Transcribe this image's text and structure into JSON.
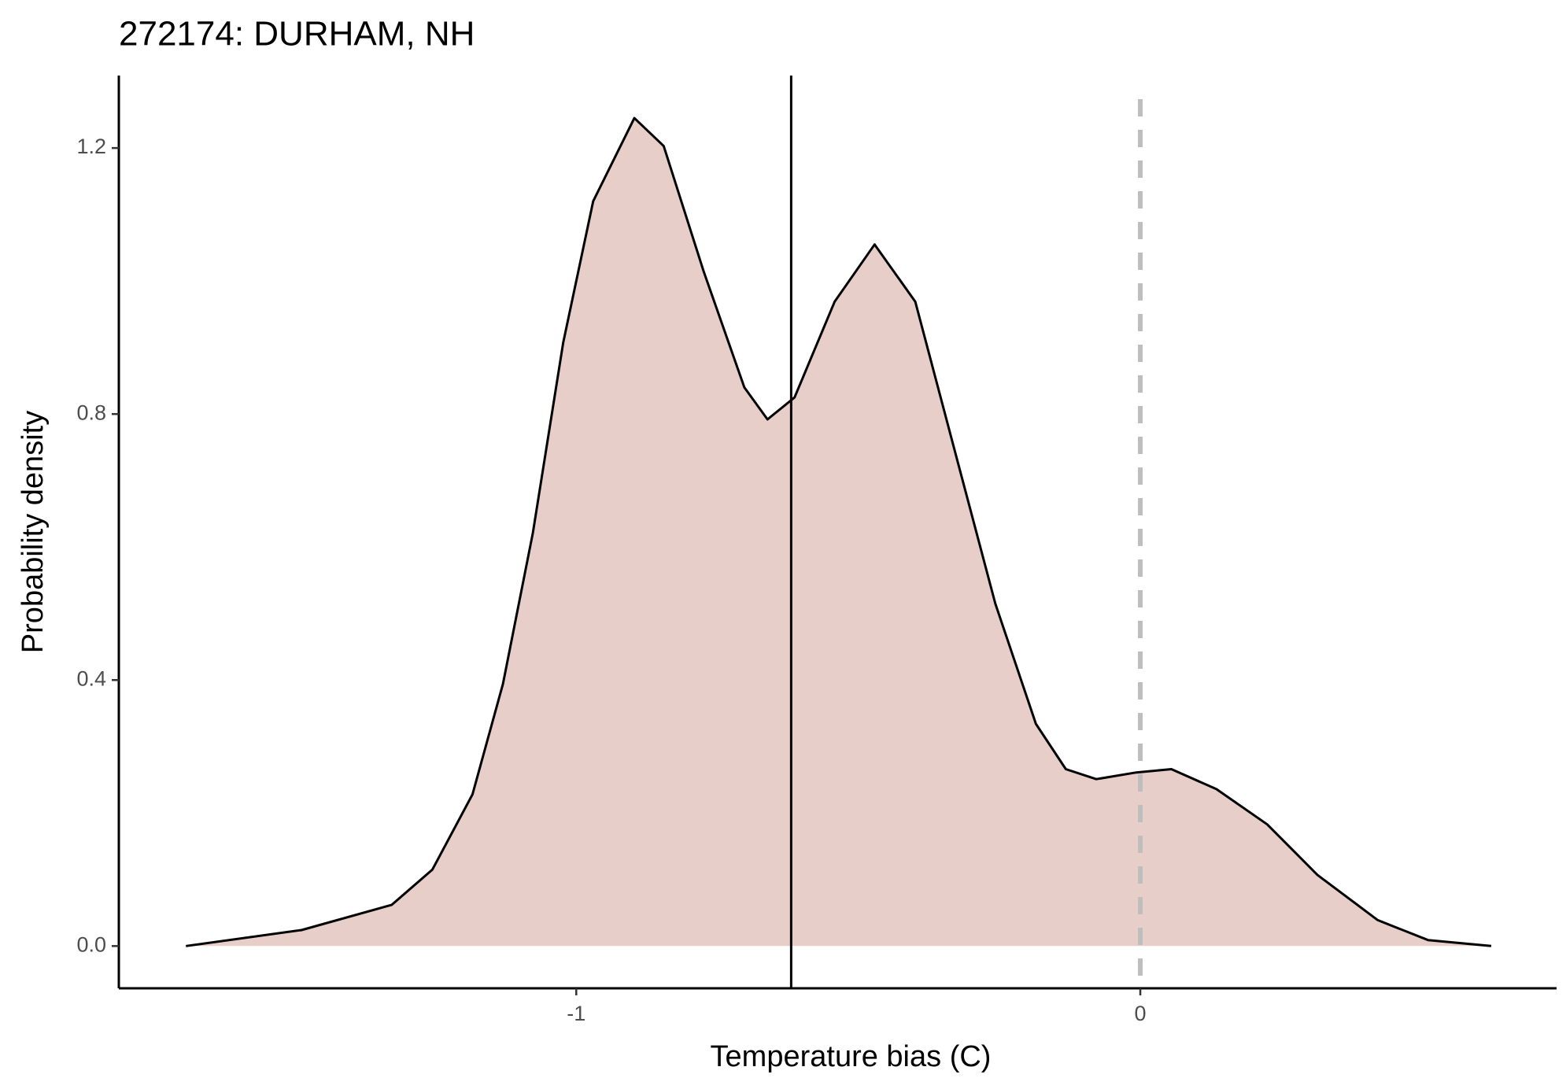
{
  "chart_data": {
    "type": "area",
    "title": "272174: DURHAM, NH",
    "x_label": "Temperature bias (C)",
    "y_label": "Probability density",
    "x": [
      -1.692,
      -1.487,
      -1.327,
      -1.255,
      -1.184,
      -1.13,
      -1.077,
      -1.023,
      -0.97,
      -0.897,
      -0.845,
      -0.774,
      -0.702,
      -0.661,
      -0.613,
      -0.542,
      -0.471,
      -0.399,
      -0.328,
      -0.257,
      -0.185,
      -0.132,
      -0.078,
      -0.007,
      0.055,
      0.135,
      0.225,
      0.314,
      0.421,
      0.51,
      0.622
    ],
    "values": [
      0,
      0.024,
      0.062,
      0.115,
      0.228,
      0.394,
      0.621,
      0.908,
      1.12,
      1.245,
      1.203,
      1.014,
      0.84,
      0.792,
      0.825,
      0.969,
      1.055,
      0.969,
      0.742,
      0.515,
      0.334,
      0.266,
      0.251,
      0.261,
      0.266,
      0.236,
      0.183,
      0.107,
      0.039,
      0.009,
      0
    ],
    "color": "#e8cec8",
    "line_color": "#000000",
    "vlines": [
      {
        "x": -0.619,
        "color": "#000000",
        "dashed": false
      },
      {
        "x": 0,
        "color": "#bebebe",
        "dashed": true
      }
    ],
    "xlim": [
      -1.811,
      0.738
    ],
    "ylim": [
      -0.0635,
      1.309
    ],
    "xticks": [
      -1,
      0
    ],
    "yticks": [
      {
        "value": 0,
        "label": "0.0"
      },
      0.4,
      0.8,
      1.2
    ],
    "grid": false
  }
}
